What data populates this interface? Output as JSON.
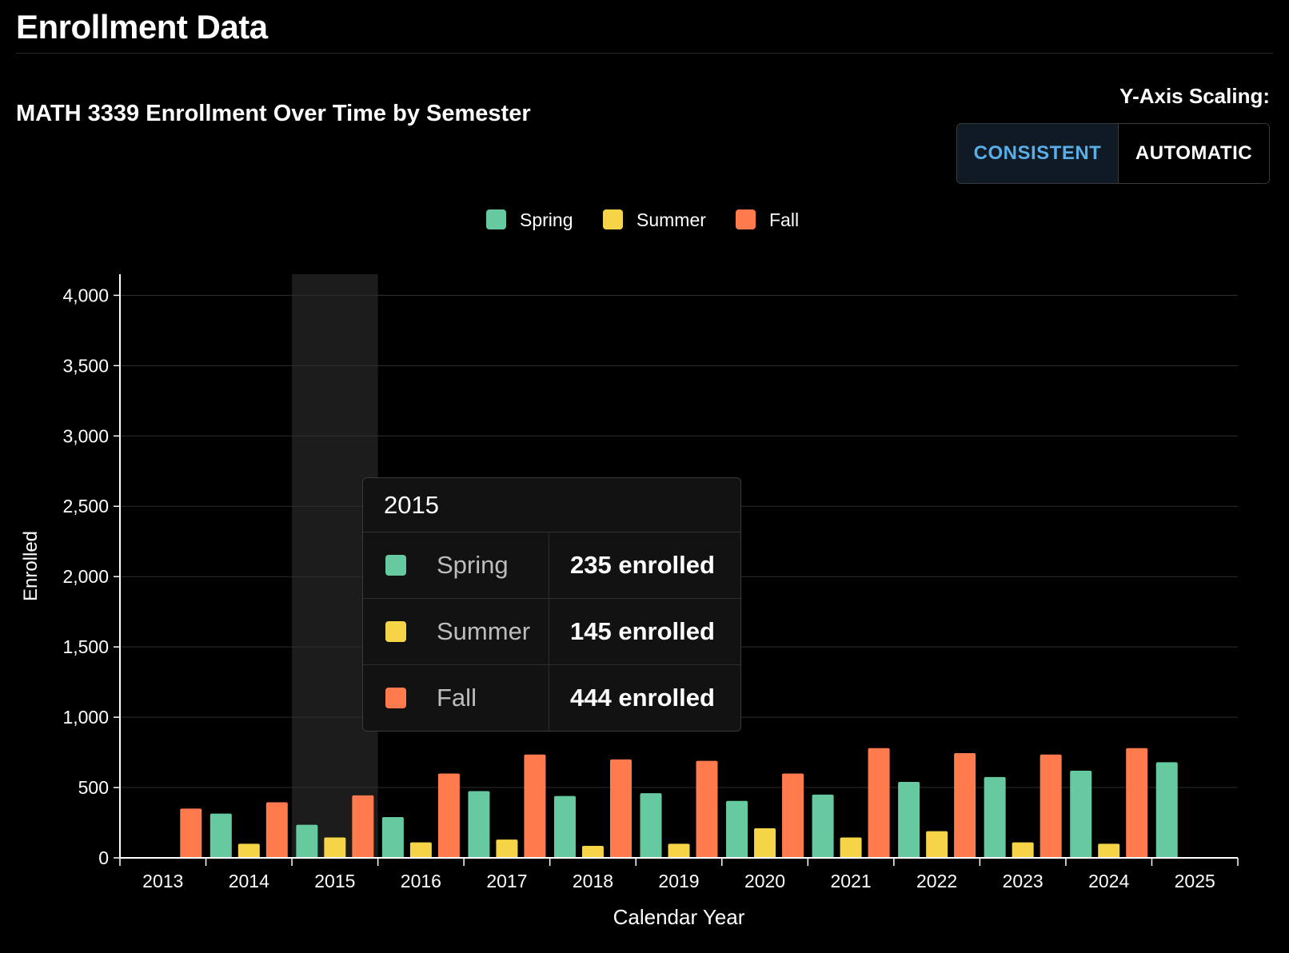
{
  "page": {
    "title": "Enrollment Data"
  },
  "scaling": {
    "label": "Y-Axis Scaling:",
    "options": [
      "CONSISTENT",
      "AUTOMATIC"
    ],
    "selected": "CONSISTENT"
  },
  "colors": {
    "spring": "#66c9a0",
    "summer": "#f5d547",
    "fall": "#ff7a4d",
    "accent": "#5aaee8"
  },
  "tooltip": {
    "year": "2015",
    "rows": [
      {
        "name": "Spring",
        "value": "235 enrolled",
        "color": "#66c9a0"
      },
      {
        "name": "Summer",
        "value": "145 enrolled",
        "color": "#f5d547"
      },
      {
        "name": "Fall",
        "value": "444 enrolled",
        "color": "#ff7a4d"
      }
    ]
  },
  "chart_data": {
    "type": "bar",
    "title": "MATH 3339 Enrollment Over Time by Semester",
    "xlabel": "Calendar Year",
    "ylabel": "Enrolled",
    "ylim": [
      0,
      4150
    ],
    "yticks": [
      0,
      500,
      1000,
      1500,
      2000,
      2500,
      3000,
      3500,
      4000
    ],
    "ytick_labels": [
      "0",
      "500",
      "1,000",
      "1,500",
      "2,000",
      "2,500",
      "3,000",
      "3,500",
      "4,000"
    ],
    "grid": true,
    "legend_position": "top-center",
    "highlighted_category": "2015",
    "categories": [
      "2013",
      "2014",
      "2015",
      "2016",
      "2017",
      "2018",
      "2019",
      "2020",
      "2021",
      "2022",
      "2023",
      "2024",
      "2025"
    ],
    "series": [
      {
        "name": "Spring",
        "color": "#66c9a0",
        "values": [
          null,
          315,
          235,
          290,
          475,
          440,
          460,
          405,
          450,
          540,
          575,
          620,
          680
        ]
      },
      {
        "name": "Summer",
        "color": "#f5d547",
        "values": [
          null,
          100,
          145,
          110,
          130,
          85,
          100,
          210,
          145,
          190,
          110,
          100,
          null
        ]
      },
      {
        "name": "Fall",
        "color": "#ff7a4d",
        "values": [
          350,
          395,
          444,
          600,
          735,
          700,
          690,
          600,
          780,
          745,
          735,
          780,
          null
        ]
      }
    ]
  }
}
